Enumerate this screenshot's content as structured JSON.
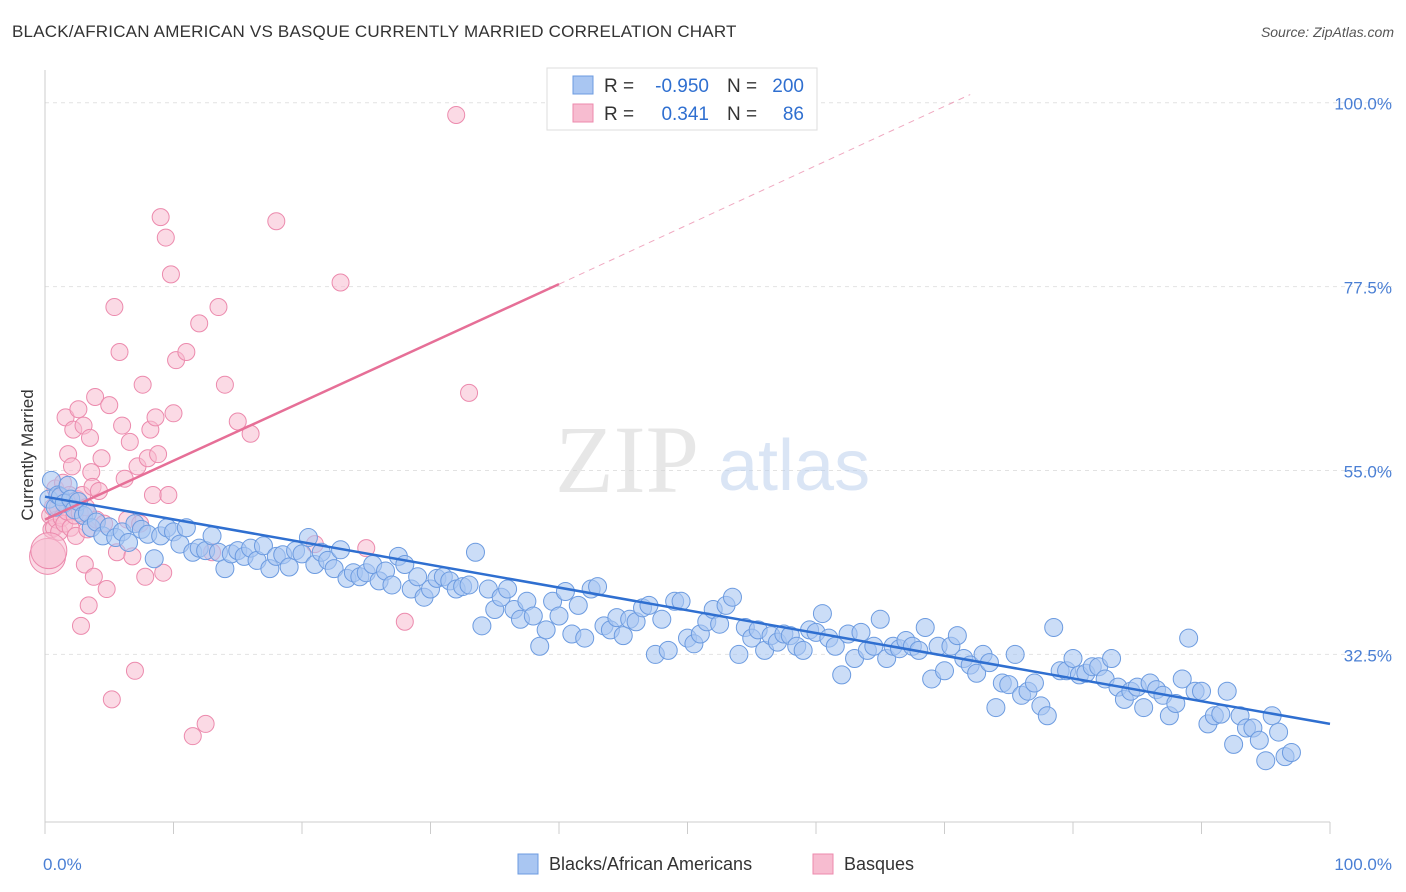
{
  "header": {
    "title": "BLACK/AFRICAN AMERICAN VS BASQUE CURRENTLY MARRIED CORRELATION CHART",
    "source": "Source: ZipAtlas.com"
  },
  "watermark": {
    "zip": "ZIP",
    "atlas": "atlas"
  },
  "colors": {
    "blue_fill": "#a9c6f2",
    "blue_stroke": "#6c9be0",
    "blue_line": "#2f6fd0",
    "pink_fill": "#f7bcd0",
    "pink_stroke": "#ec8aad",
    "pink_line": "#e66f97",
    "tick_text": "#4a7fd4",
    "grid": "#e2e2e2"
  },
  "legend": {
    "rows": [
      {
        "r_label": "R =",
        "r_value": "-0.950",
        "n_label": "N =",
        "n_value": "200"
      },
      {
        "r_label": "R =",
        "r_value": "0.341",
        "n_label": "N =",
        "n_value": "86"
      }
    ]
  },
  "chart_data": {
    "type": "scatter",
    "title": "BLACK/AFRICAN AMERICAN VS BASQUE CURRENTLY MARRIED CORRELATION CHART",
    "xlabel": "",
    "ylabel": "Currently Married",
    "xlim": [
      0,
      100
    ],
    "ylim": [
      12,
      104
    ],
    "x_tick_labels": [
      "0.0%",
      "100.0%"
    ],
    "y_ticks": [
      32.5,
      55.0,
      77.5,
      100.0
    ],
    "y_tick_labels": [
      "32.5%",
      "55.0%",
      "77.5%",
      "100.0%"
    ],
    "grid": true,
    "legend_position": "top-center",
    "series": [
      {
        "name": "Blacks/African Americans",
        "color": "#a9c6f2",
        "r": -0.95,
        "n": 200,
        "trend": {
          "x": [
            0,
            100
          ],
          "y": [
            51.8,
            24.0
          ]
        },
        "points": [
          [
            0.3,
            51.5
          ],
          [
            0.5,
            53.8
          ],
          [
            0.8,
            50.5
          ],
          [
            1.0,
            52.0
          ],
          [
            1.2,
            51.8
          ],
          [
            1.5,
            51.0
          ],
          [
            1.8,
            53.2
          ],
          [
            2.0,
            51.5
          ],
          [
            2.3,
            50.2
          ],
          [
            2.6,
            51.2
          ],
          [
            3.0,
            49.5
          ],
          [
            3.3,
            49.8
          ],
          [
            3.6,
            48.0
          ],
          [
            4.0,
            48.7
          ],
          [
            4.5,
            47.0
          ],
          [
            5.0,
            48.1
          ],
          [
            5.5,
            46.8
          ],
          [
            6.0,
            47.5
          ],
          [
            6.5,
            46.2
          ],
          [
            7.0,
            48.5
          ],
          [
            7.5,
            47.8
          ],
          [
            8.0,
            47.2
          ],
          [
            8.5,
            44.2
          ],
          [
            9.0,
            47.0
          ],
          [
            9.5,
            48.0
          ],
          [
            10.0,
            47.5
          ],
          [
            10.5,
            46.0
          ],
          [
            11.0,
            48.0
          ],
          [
            11.5,
            45.0
          ],
          [
            12.0,
            45.5
          ],
          [
            12.5,
            45.2
          ],
          [
            13.0,
            47.0
          ],
          [
            13.5,
            45.0
          ],
          [
            14.0,
            43.0
          ],
          [
            14.5,
            44.8
          ],
          [
            15.0,
            45.2
          ],
          [
            15.5,
            44.5
          ],
          [
            16.0,
            45.5
          ],
          [
            16.5,
            44.0
          ],
          [
            17.0,
            45.8
          ],
          [
            17.5,
            43.0
          ],
          [
            18.0,
            44.5
          ],
          [
            18.5,
            44.7
          ],
          [
            19.0,
            43.2
          ],
          [
            19.5,
            45.2
          ],
          [
            20.0,
            44.8
          ],
          [
            20.5,
            46.8
          ],
          [
            21.0,
            43.5
          ],
          [
            21.5,
            45.0
          ],
          [
            22.0,
            44.0
          ],
          [
            22.5,
            43.0
          ],
          [
            23.0,
            45.3
          ],
          [
            23.5,
            41.8
          ],
          [
            24.0,
            42.5
          ],
          [
            24.5,
            42.0
          ],
          [
            25.0,
            42.5
          ],
          [
            25.5,
            43.5
          ],
          [
            26.0,
            41.5
          ],
          [
            26.5,
            42.7
          ],
          [
            27.0,
            41.0
          ],
          [
            27.5,
            44.5
          ],
          [
            28.0,
            43.5
          ],
          [
            28.5,
            40.5
          ],
          [
            29.0,
            42.0
          ],
          [
            29.5,
            39.5
          ],
          [
            30.0,
            40.5
          ],
          [
            30.5,
            41.8
          ],
          [
            31.0,
            42.0
          ],
          [
            31.5,
            41.5
          ],
          [
            32.0,
            40.5
          ],
          [
            32.5,
            40.8
          ],
          [
            33.0,
            41.0
          ],
          [
            33.5,
            45.0
          ],
          [
            34.0,
            36.0
          ],
          [
            34.5,
            40.5
          ],
          [
            35.0,
            38.0
          ],
          [
            35.5,
            39.5
          ],
          [
            36.0,
            40.5
          ],
          [
            36.5,
            38.0
          ],
          [
            37.0,
            36.8
          ],
          [
            37.5,
            39.0
          ],
          [
            38.0,
            37.2
          ],
          [
            38.5,
            33.5
          ],
          [
            39.0,
            35.5
          ],
          [
            39.5,
            39.0
          ],
          [
            40.0,
            37.2
          ],
          [
            40.5,
            40.2
          ],
          [
            41.0,
            35.0
          ],
          [
            41.5,
            38.5
          ],
          [
            42.0,
            34.5
          ],
          [
            42.5,
            40.5
          ],
          [
            43.0,
            40.8
          ],
          [
            43.5,
            36.0
          ],
          [
            44.0,
            35.5
          ],
          [
            44.5,
            37.0
          ],
          [
            45.0,
            34.8
          ],
          [
            45.5,
            36.8
          ],
          [
            46.0,
            36.5
          ],
          [
            46.5,
            38.2
          ],
          [
            47.0,
            38.5
          ],
          [
            47.5,
            32.5
          ],
          [
            48.0,
            36.8
          ],
          [
            48.5,
            33.0
          ],
          [
            49.0,
            39.0
          ],
          [
            49.5,
            39.0
          ],
          [
            50.0,
            34.5
          ],
          [
            50.5,
            33.8
          ],
          [
            51.0,
            35.0
          ],
          [
            51.5,
            36.5
          ],
          [
            52.0,
            38.0
          ],
          [
            52.5,
            36.2
          ],
          [
            53.0,
            38.5
          ],
          [
            53.5,
            39.5
          ],
          [
            54.0,
            32.5
          ],
          [
            54.5,
            35.8
          ],
          [
            55.0,
            34.5
          ],
          [
            55.5,
            35.5
          ],
          [
            56.0,
            33.0
          ],
          [
            56.5,
            34.8
          ],
          [
            57.0,
            34.0
          ],
          [
            57.5,
            35.0
          ],
          [
            58.0,
            34.8
          ],
          [
            58.5,
            33.5
          ],
          [
            59.0,
            33.0
          ],
          [
            59.5,
            35.5
          ],
          [
            60.0,
            35.2
          ],
          [
            60.5,
            37.5
          ],
          [
            61.0,
            34.5
          ],
          [
            61.5,
            33.5
          ],
          [
            62.0,
            30.0
          ],
          [
            62.5,
            35.0
          ],
          [
            63.0,
            32.0
          ],
          [
            63.5,
            35.2
          ],
          [
            64.0,
            33.0
          ],
          [
            64.5,
            33.5
          ],
          [
            65.0,
            36.8
          ],
          [
            65.5,
            32.0
          ],
          [
            66.0,
            33.5
          ],
          [
            66.5,
            33.2
          ],
          [
            67.0,
            34.2
          ],
          [
            67.5,
            33.5
          ],
          [
            68.0,
            33.0
          ],
          [
            68.5,
            35.8
          ],
          [
            69.0,
            29.5
          ],
          [
            69.5,
            33.5
          ],
          [
            70.0,
            30.5
          ],
          [
            70.5,
            33.5
          ],
          [
            71.0,
            34.8
          ],
          [
            71.5,
            32.0
          ],
          [
            72.0,
            31.2
          ],
          [
            72.5,
            30.2
          ],
          [
            73.0,
            32.5
          ],
          [
            73.5,
            31.5
          ],
          [
            74.0,
            26.0
          ],
          [
            74.5,
            29.0
          ],
          [
            75.0,
            28.8
          ],
          [
            75.5,
            32.5
          ],
          [
            76.0,
            27.5
          ],
          [
            76.5,
            28.0
          ],
          [
            77.0,
            29.0
          ],
          [
            77.5,
            26.2
          ],
          [
            78.0,
            25.0
          ],
          [
            78.5,
            35.8
          ],
          [
            79.0,
            30.5
          ],
          [
            79.5,
            30.5
          ],
          [
            80.0,
            32.0
          ],
          [
            80.5,
            30.0
          ],
          [
            81.0,
            30.2
          ],
          [
            81.5,
            31.0
          ],
          [
            82.0,
            31.0
          ],
          [
            82.5,
            29.5
          ],
          [
            83.0,
            32.0
          ],
          [
            83.5,
            28.5
          ],
          [
            84.0,
            27.0
          ],
          [
            84.5,
            28.0
          ],
          [
            85.0,
            28.5
          ],
          [
            85.5,
            26.0
          ],
          [
            86.0,
            29.0
          ],
          [
            86.5,
            28.2
          ],
          [
            87.0,
            27.5
          ],
          [
            87.5,
            25.0
          ],
          [
            88.0,
            26.5
          ],
          [
            88.5,
            29.5
          ],
          [
            89.0,
            34.5
          ],
          [
            89.5,
            28.0
          ],
          [
            90.0,
            28.0
          ],
          [
            90.5,
            24.0
          ],
          [
            91.0,
            25.0
          ],
          [
            91.5,
            25.2
          ],
          [
            92.0,
            28.0
          ],
          [
            92.5,
            21.5
          ],
          [
            93.0,
            25.0
          ],
          [
            93.5,
            23.5
          ],
          [
            94.0,
            23.5
          ],
          [
            94.5,
            22.0
          ],
          [
            95.0,
            19.5
          ],
          [
            95.5,
            25.0
          ],
          [
            96.0,
            23.0
          ],
          [
            96.5,
            20.0
          ],
          [
            97.0,
            20.5
          ]
        ]
      },
      {
        "name": "Basques",
        "color": "#f7bcd0",
        "r": 0.341,
        "n": 86,
        "trend": {
          "x": [
            0,
            40
          ],
          "y": [
            49.0,
            77.8
          ]
        },
        "trend_dashed": {
          "x": [
            40,
            72
          ],
          "y": [
            77.8,
            101.0
          ]
        },
        "points": [
          [
            0.2,
            44.5
          ],
          [
            0.4,
            49.5
          ],
          [
            0.5,
            47.8
          ],
          [
            0.6,
            50.5
          ],
          [
            0.7,
            48.0
          ],
          [
            0.8,
            52.8
          ],
          [
            0.9,
            49.0
          ],
          [
            1.0,
            50.5
          ],
          [
            1.1,
            47.5
          ],
          [
            1.2,
            51.8
          ],
          [
            1.3,
            49.2
          ],
          [
            1.4,
            53.5
          ],
          [
            1.5,
            48.5
          ],
          [
            1.6,
            61.5
          ],
          [
            1.7,
            50.0
          ],
          [
            1.8,
            57.0
          ],
          [
            1.9,
            52.0
          ],
          [
            2.0,
            48.0
          ],
          [
            2.1,
            55.5
          ],
          [
            2.2,
            60.0
          ],
          [
            2.3,
            49.5
          ],
          [
            2.4,
            47.0
          ],
          [
            2.5,
            51.5
          ],
          [
            2.6,
            62.5
          ],
          [
            2.7,
            49.8
          ],
          [
            2.8,
            36.0
          ],
          [
            2.9,
            52.0
          ],
          [
            3.0,
            60.5
          ],
          [
            3.1,
            43.5
          ],
          [
            3.2,
            50.5
          ],
          [
            3.3,
            47.8
          ],
          [
            3.4,
            38.5
          ],
          [
            3.5,
            59.0
          ],
          [
            3.6,
            54.8
          ],
          [
            3.7,
            53.0
          ],
          [
            3.8,
            42.0
          ],
          [
            3.9,
            64.0
          ],
          [
            4.0,
            49.0
          ],
          [
            4.2,
            52.5
          ],
          [
            4.4,
            56.5
          ],
          [
            4.6,
            48.5
          ],
          [
            4.8,
            40.5
          ],
          [
            5.0,
            63.0
          ],
          [
            5.2,
            27.0
          ],
          [
            5.4,
            75.0
          ],
          [
            5.6,
            45.0
          ],
          [
            5.8,
            69.5
          ],
          [
            6.0,
            60.5
          ],
          [
            6.2,
            54.0
          ],
          [
            6.4,
            49.0
          ],
          [
            6.6,
            58.5
          ],
          [
            6.8,
            44.5
          ],
          [
            7.0,
            30.5
          ],
          [
            7.2,
            55.5
          ],
          [
            7.4,
            48.5
          ],
          [
            7.6,
            65.5
          ],
          [
            7.8,
            42.0
          ],
          [
            8.0,
            56.5
          ],
          [
            8.2,
            60.0
          ],
          [
            8.4,
            52.0
          ],
          [
            8.6,
            61.5
          ],
          [
            8.8,
            57.0
          ],
          [
            9.0,
            86.0
          ],
          [
            9.2,
            42.5
          ],
          [
            9.4,
            83.5
          ],
          [
            9.6,
            52.0
          ],
          [
            9.8,
            79.0
          ],
          [
            10.0,
            62.0
          ],
          [
            10.2,
            68.5
          ],
          [
            11.0,
            69.5
          ],
          [
            11.5,
            22.5
          ],
          [
            12.0,
            73.0
          ],
          [
            12.5,
            24.0
          ],
          [
            13.0,
            45.0
          ],
          [
            13.5,
            75.0
          ],
          [
            14.0,
            65.5
          ],
          [
            15.0,
            61.0
          ],
          [
            16.0,
            59.5
          ],
          [
            18.0,
            85.5
          ],
          [
            21.0,
            46.0
          ],
          [
            23.0,
            78.0
          ],
          [
            25.0,
            45.5
          ],
          [
            28.0,
            36.5
          ],
          [
            32.0,
            98.5
          ],
          [
            33.0,
            64.5
          ],
          [
            0.3,
            45.2
          ]
        ]
      }
    ]
  },
  "bottom_legend": {
    "items": [
      {
        "label": "Blacks/African Americans"
      },
      {
        "label": "Basques"
      }
    ]
  }
}
